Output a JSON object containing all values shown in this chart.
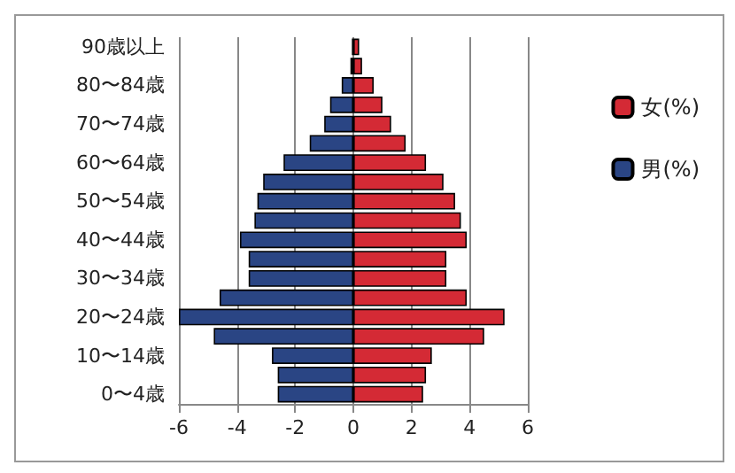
{
  "chart_data": {
    "type": "bar",
    "orientation": "horizontal",
    "stacked": true,
    "categories": [
      "90歳以上",
      null,
      "80〜84歳",
      null,
      "70〜74歳",
      null,
      "60〜64歳",
      null,
      "50〜54歳",
      null,
      "40〜44歳",
      null,
      "30〜34歳",
      null,
      "20〜24歳",
      null,
      "10〜14歳",
      null,
      "0〜4歳"
    ],
    "series": [
      {
        "name": "女(%)",
        "color": "#d42a35",
        "values": [
          0.2,
          0.3,
          0.7,
          1.0,
          1.3,
          1.8,
          2.5,
          3.1,
          3.5,
          3.7,
          3.9,
          3.2,
          3.2,
          3.9,
          5.2,
          4.5,
          2.7,
          2.5,
          2.4
        ]
      },
      {
        "name": "男(%)",
        "color": "#2a4584",
        "values": [
          -0.05,
          -0.1,
          -0.4,
          -0.8,
          -1.0,
          -1.5,
          -2.4,
          -3.1,
          -3.3,
          -3.4,
          -3.9,
          -3.6,
          -3.6,
          -4.6,
          -6.0,
          -4.8,
          -2.8,
          -2.6,
          -2.6
        ]
      }
    ],
    "xlim": [
      -6,
      6
    ],
    "xticks": [
      -6,
      -4,
      -2,
      0,
      2,
      4,
      6
    ],
    "grid": "x",
    "legend": "right"
  }
}
